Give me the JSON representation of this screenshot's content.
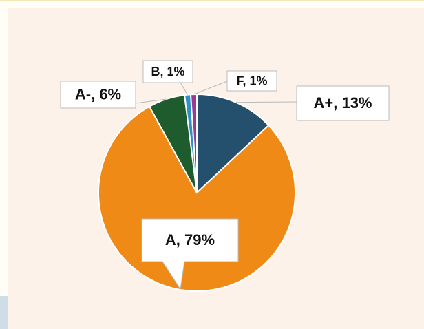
{
  "chart_data": {
    "type": "pie",
    "categories": [
      "A+",
      "A",
      "A-",
      "B",
      "F"
    ],
    "values": [
      13,
      79,
      6,
      1,
      1
    ],
    "value_labels": [
      "A+, 13%",
      "A, 79%",
      "A-, 6%",
      "B, 1%",
      "F, 1%"
    ],
    "colors": [
      "#24506e",
      "#ef8a17",
      "#1e5c2e",
      "#2f8fc7",
      "#9b3a8f"
    ]
  }
}
